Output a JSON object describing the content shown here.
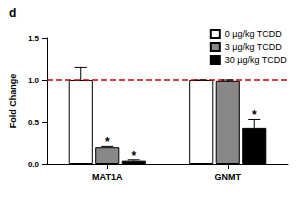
{
  "chart_data": {
    "type": "bar",
    "title": "d",
    "y_label": "Fold Change",
    "categories": [
      "MAT1A",
      "GNMT"
    ],
    "series": [
      {
        "name": "0 µg/kg TCDD",
        "color": "#ffffff",
        "values": [
          1.0,
          1.0
        ],
        "errors": [
          0.15,
          0.0
        ]
      },
      {
        "name": "3 µg/kg TCDD",
        "color": "#888888",
        "values": [
          0.2,
          0.99
        ],
        "errors": [
          0.01,
          0.01
        ]
      },
      {
        "name": "30 µg/kg TCDD",
        "color": "#000000",
        "values": [
          0.04,
          0.43
        ],
        "errors": [
          0.01,
          0.1
        ]
      }
    ],
    "annotations": [
      {
        "text": "*",
        "category": "MAT1A",
        "series": "3 µg/kg TCDD"
      },
      {
        "text": "*",
        "category": "MAT1A",
        "series": "30 µg/kg TCDD"
      },
      {
        "text": "*",
        "category": "GNMT",
        "series": "30 µg/kg TCDD"
      }
    ],
    "hline": {
      "value": 1.0,
      "color": "#cc0000",
      "line_style": "dashed"
    },
    "ylim": [
      0,
      1.5
    ],
    "yticks": [
      {
        "value": 0,
        "label": "0.0"
      },
      {
        "value": 0.5,
        "label": "0.5"
      },
      {
        "value": 1.0,
        "label": "1.0"
      },
      {
        "value": 1.5,
        "label": "1.5"
      }
    ],
    "grid": false,
    "legend": "top-right"
  }
}
